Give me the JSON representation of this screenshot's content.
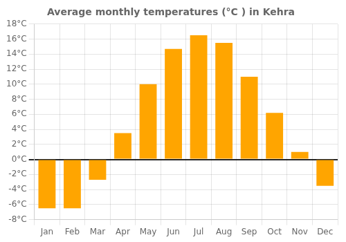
{
  "chart_data": {
    "type": "bar",
    "title": "Average monthly temperatures (°C ) in Kehra",
    "categories": [
      "Jan",
      "Feb",
      "Mar",
      "Apr",
      "May",
      "Jun",
      "Jul",
      "Aug",
      "Sep",
      "Oct",
      "Nov",
      "Dec"
    ],
    "values": [
      -6.5,
      -6.5,
      -2.7,
      3.5,
      10.0,
      14.7,
      16.5,
      15.5,
      11.0,
      6.2,
      1.0,
      -3.5
    ],
    "color": "#FFA500",
    "ylim": [
      -8,
      18
    ],
    "yticks": [
      {
        "value": -8,
        "label": "-8°C"
      },
      {
        "value": -6,
        "label": "-6°C"
      },
      {
        "value": -4,
        "label": "-4°C"
      },
      {
        "value": -2,
        "label": "-2°C"
      },
      {
        "value": 0,
        "label": "0°C"
      },
      {
        "value": 2,
        "label": "2°C"
      },
      {
        "value": 4,
        "label": "4°C"
      },
      {
        "value": 6,
        "label": "6°C"
      },
      {
        "value": 8,
        "label": "8°C"
      },
      {
        "value": 10,
        "label": "10°C"
      },
      {
        "value": 12,
        "label": "12°C"
      },
      {
        "value": 14,
        "label": "14°C"
      },
      {
        "value": 16,
        "label": "16°C"
      },
      {
        "value": 18,
        "label": "18°C"
      }
    ],
    "grid": true
  }
}
